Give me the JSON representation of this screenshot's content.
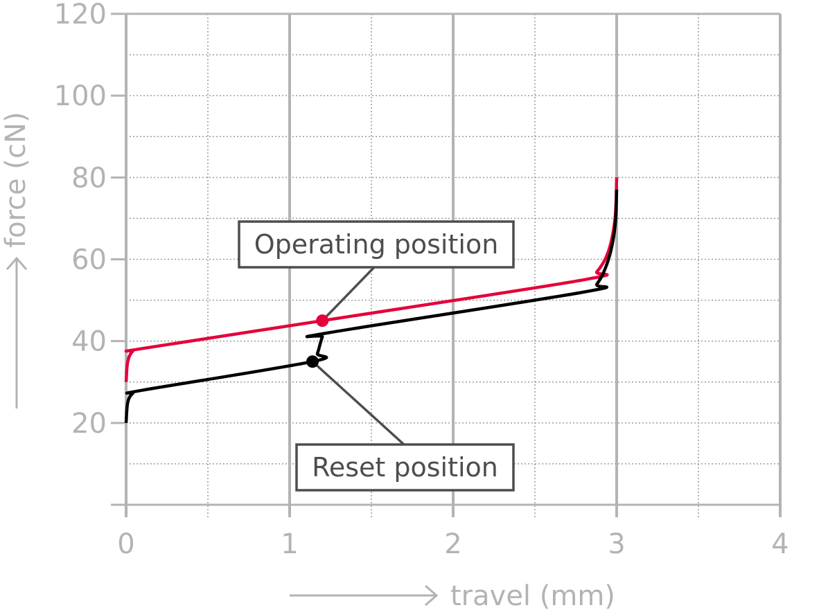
{
  "chart_data": {
    "type": "line",
    "xlabel": "travel (mm)",
    "ylabel": "force (cN)",
    "xlim": [
      0,
      4
    ],
    "ylim": [
      0,
      120
    ],
    "x_ticks": [
      0,
      1,
      2,
      3,
      4
    ],
    "y_ticks": [
      20,
      40,
      60,
      80,
      100,
      120
    ],
    "grid": true,
    "series": [
      {
        "color": "#e4003a",
        "points": [
          [
            0,
            30
          ],
          [
            0.01,
            35
          ],
          [
            0.04,
            37.5
          ],
          [
            0.1,
            38.2
          ],
          [
            1.2,
            45
          ],
          [
            2.8,
            55
          ],
          [
            2.88,
            57
          ],
          [
            2.95,
            62
          ],
          [
            2.99,
            70
          ],
          [
            3.0,
            80
          ]
        ]
      },
      {
        "color": "#000000",
        "points": [
          [
            0,
            20
          ],
          [
            0.01,
            25
          ],
          [
            0.04,
            27.2
          ],
          [
            0.1,
            28
          ],
          [
            1.14,
            35
          ],
          [
            1.17,
            37
          ],
          [
            1.2,
            41
          ],
          [
            1.23,
            42
          ],
          [
            2.8,
            52
          ],
          [
            2.88,
            54
          ],
          [
            2.95,
            60
          ],
          [
            2.99,
            68
          ],
          [
            3.0,
            77
          ]
        ]
      }
    ],
    "annotations": [
      {
        "text": "Operating position",
        "point": [
          1.2,
          45
        ],
        "color": "#e4003a"
      },
      {
        "text": "Reset position",
        "point": [
          1.14,
          35
        ],
        "color": "#000000"
      }
    ]
  }
}
